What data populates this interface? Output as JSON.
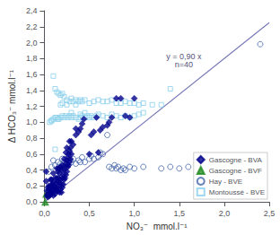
{
  "chart_data": {
    "type": "scatter",
    "xlabel": "NO₃⁻  mmol.l⁻¹",
    "ylabel": "Δ HCO₃⁻ mmol.l⁻¹",
    "annotation": "y = 0,90 x\nn=40",
    "xlim": [
      0,
      2.5
    ],
    "ylim": [
      0,
      2.4
    ],
    "xticks": [
      {
        "value": 0.0,
        "label": "0,0"
      },
      {
        "value": 0.5,
        "label": "0,5"
      },
      {
        "value": 1.0,
        "label": "1,0"
      },
      {
        "value": 1.5,
        "label": "1,5"
      },
      {
        "value": 2.0,
        "label": "2,0"
      },
      {
        "value": 2.5,
        "label": "2,5"
      }
    ],
    "yticks": [
      {
        "value": 0.0,
        "label": "0,0"
      },
      {
        "value": 0.2,
        "label": "0,2"
      },
      {
        "value": 0.4,
        "label": "0,4"
      },
      {
        "value": 0.6,
        "label": "0,6"
      },
      {
        "value": 0.8,
        "label": "0,8"
      },
      {
        "value": 1.0,
        "label": "1,0"
      },
      {
        "value": 1.2,
        "label": "1,2"
      },
      {
        "value": 1.4,
        "label": "1,4"
      },
      {
        "value": 1.6,
        "label": "1,6"
      },
      {
        "value": 1.8,
        "label": "1,8"
      },
      {
        "value": 2.0,
        "label": "2,0"
      },
      {
        "value": 2.2,
        "label": "2,2"
      },
      {
        "value": 2.4,
        "label": "2,4"
      }
    ],
    "grid": false,
    "legend": "lower right",
    "series": [
      {
        "type": "line",
        "color": "#7878b8",
        "line_style": "solid",
        "x": [
          0,
          2.5
        ],
        "values": [
          0,
          2.25
        ]
      },
      {
        "type": "scatter",
        "name": "Gascogne - BVA",
        "color": "#00008B",
        "marker": "diamond",
        "x": [
          0.02,
          0.02,
          0.03,
          0.03,
          0.04,
          0.04,
          0.04,
          0.05,
          0.05,
          0.05,
          0.06,
          0.06,
          0.07,
          0.07,
          0.07,
          0.08,
          0.08,
          0.08,
          0.09,
          0.09,
          0.1,
          0.1,
          0.1,
          0.1,
          0.11,
          0.12,
          0.12,
          0.12,
          0.13,
          0.13,
          0.14,
          0.14,
          0.14,
          0.15,
          0.15,
          0.15,
          0.16,
          0.16,
          0.16,
          0.17,
          0.17,
          0.17,
          0.18,
          0.18,
          0.18,
          0.19,
          0.19,
          0.19,
          0.2,
          0.2,
          0.2,
          0.21,
          0.21,
          0.22,
          0.22,
          0.22,
          0.23,
          0.23,
          0.24,
          0.24,
          0.24,
          0.25,
          0.25,
          0.25,
          0.26,
          0.26,
          0.27,
          0.27,
          0.28,
          0.28,
          0.28,
          0.29,
          0.29,
          0.3,
          0.3,
          0.32,
          0.35,
          0.35,
          0.38,
          0.4,
          0.42,
          0.44,
          0.5,
          0.52,
          0.55,
          0.58,
          0.6,
          0.62,
          0.65,
          0.7,
          0.72,
          0.75,
          0.8,
          0.85,
          0.9,
          0.95,
          1.0
        ],
        "values": [
          0.26,
          0.38,
          0.08,
          0.14,
          0.06,
          0.1,
          0.18,
          0.1,
          0.16,
          0.2,
          0.08,
          0.14,
          0.12,
          0.2,
          0.28,
          0.1,
          0.18,
          0.28,
          0.14,
          0.22,
          0.08,
          0.16,
          0.24,
          0.36,
          0.2,
          0.1,
          0.18,
          0.3,
          0.14,
          0.24,
          0.18,
          0.3,
          0.42,
          0.14,
          0.26,
          0.38,
          0.2,
          0.3,
          0.42,
          0.12,
          0.24,
          0.36,
          0.16,
          0.28,
          0.44,
          0.12,
          0.22,
          0.4,
          0.18,
          0.3,
          0.46,
          0.22,
          0.34,
          0.28,
          0.4,
          0.54,
          0.3,
          0.44,
          0.34,
          0.48,
          0.62,
          0.38,
          0.52,
          0.68,
          0.44,
          0.56,
          0.46,
          0.6,
          0.5,
          0.64,
          0.76,
          0.54,
          0.68,
          0.6,
          0.76,
          0.72,
          0.84,
          0.92,
          0.88,
          0.92,
          0.98,
          1.04,
          0.6,
          0.84,
          0.88,
          1.06,
          0.62,
          0.9,
          0.94,
          0.96,
          1.0,
          1.06,
          1.3,
          1.3,
          1.08,
          1.06,
          1.3
        ]
      },
      {
        "type": "scatter",
        "name": "Gascogne - BVF",
        "color": "#228B22",
        "marker": "triangle",
        "x": [
          0.01,
          0.02
        ],
        "values": [
          0.0,
          0.1
        ]
      },
      {
        "type": "scatter",
        "name": "Hay - BVE",
        "color": "#4466AA",
        "marker": "open_circle",
        "x": [
          0.05,
          0.08,
          0.1,
          0.12,
          0.15,
          0.18,
          0.2,
          0.22,
          0.25,
          0.28,
          0.3,
          0.32,
          0.35,
          0.38,
          0.4,
          0.42,
          0.45,
          0.5,
          0.52,
          0.55,
          0.6,
          0.62,
          0.65,
          0.7,
          0.72,
          0.75,
          0.78,
          0.8,
          0.82,
          0.85,
          0.88,
          0.9,
          0.95,
          1.0,
          1.1,
          1.3,
          1.4,
          1.5,
          1.6,
          2.4
        ],
        "values": [
          0.38,
          0.44,
          0.52,
          0.46,
          0.5,
          0.48,
          0.54,
          0.5,
          0.48,
          0.52,
          0.5,
          0.54,
          0.48,
          0.52,
          0.5,
          0.56,
          0.5,
          0.54,
          0.58,
          0.54,
          0.56,
          0.62,
          0.6,
          0.84,
          0.44,
          0.42,
          0.46,
          0.42,
          0.44,
          0.4,
          0.42,
          0.4,
          0.44,
          0.42,
          0.44,
          0.42,
          0.44,
          0.42,
          0.44,
          1.98
        ]
      },
      {
        "type": "scatter",
        "name": "Montoussé - BVE",
        "color": "#87CEEB",
        "marker": "open_square",
        "x": [
          0.06,
          0.08,
          0.1,
          0.12,
          0.14,
          0.16,
          0.18,
          0.2,
          0.22,
          0.24,
          0.26,
          0.28,
          0.3,
          0.32,
          0.35,
          0.38,
          0.4,
          0.42,
          0.45,
          0.48,
          0.5,
          0.52,
          0.55,
          0.58,
          0.6,
          0.65,
          0.7,
          0.75,
          0.8,
          0.85,
          0.9,
          0.95,
          1.0,
          1.05,
          1.1,
          1.2,
          1.3,
          1.4,
          0.1,
          0.12,
          0.14,
          0.16,
          0.18,
          0.2,
          0.22,
          0.25,
          0.28,
          0.3,
          0.32,
          0.35,
          0.38,
          0.4,
          0.42,
          0.45,
          0.5,
          0.55,
          0.6,
          0.65,
          0.7,
          0.75,
          0.8,
          0.85,
          0.9,
          0.95,
          1.0,
          1.05,
          1.1,
          0.08,
          0.12,
          0.15,
          0.18,
          0.2,
          0.25,
          0.3,
          0.35,
          0.4,
          0.45
        ],
        "values": [
          1.0,
          1.02,
          1.04,
          1.06,
          1.06,
          1.04,
          1.06,
          1.08,
          1.06,
          1.08,
          1.06,
          1.08,
          1.06,
          1.08,
          1.06,
          1.04,
          1.06,
          1.08,
          1.06,
          1.08,
          1.06,
          1.08,
          1.06,
          1.08,
          1.1,
          1.08,
          1.06,
          1.1,
          1.08,
          1.06,
          1.08,
          1.06,
          1.08,
          1.1,
          1.12,
          1.22,
          1.22,
          1.42,
          1.58,
          1.42,
          1.38,
          1.36,
          1.34,
          1.36,
          1.32,
          1.28,
          1.26,
          1.3,
          1.26,
          1.28,
          1.26,
          1.28,
          1.26,
          1.28,
          1.24,
          1.26,
          1.28,
          1.26,
          1.26,
          1.28,
          1.24,
          1.24,
          1.26,
          1.24,
          1.24,
          1.22,
          1.24,
          1.02,
          0.66,
          1.04,
          1.22,
          1.24,
          1.22,
          1.12,
          1.22,
          1.1,
          1.12
        ]
      }
    ]
  }
}
